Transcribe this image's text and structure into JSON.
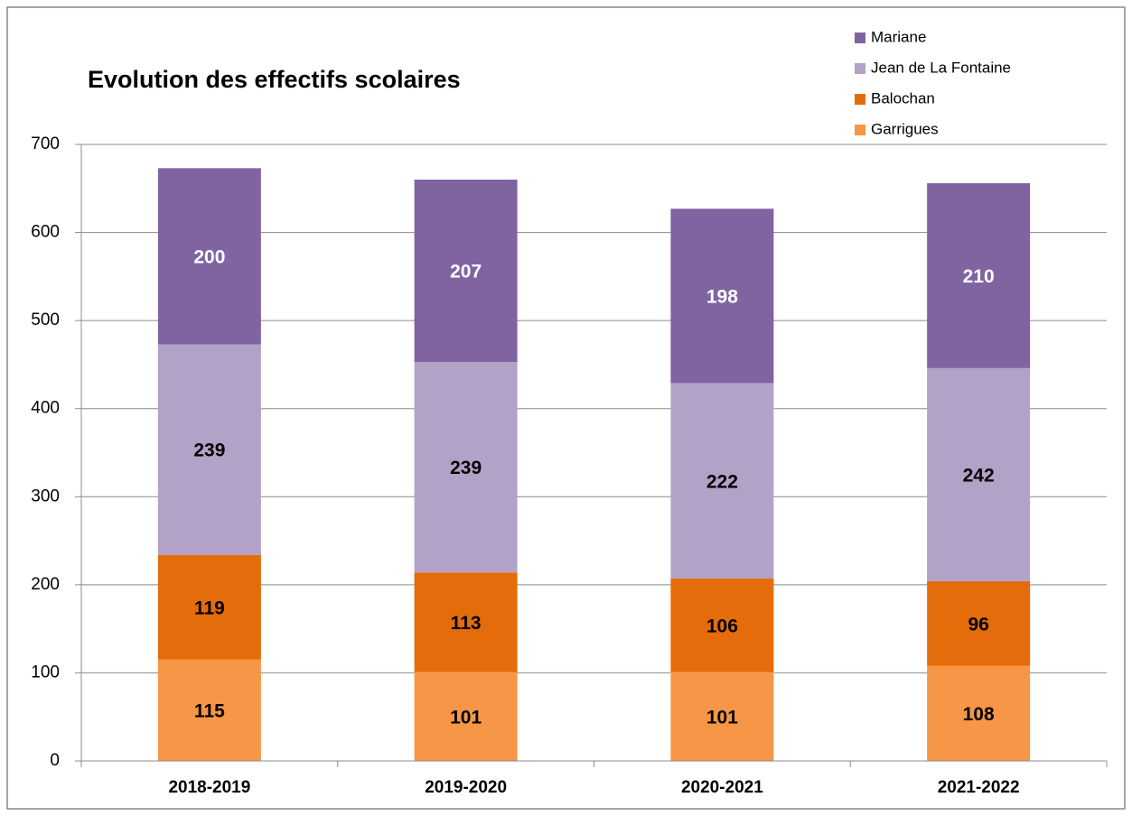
{
  "chart_data": {
    "type": "stacked_bar",
    "title": "Evolution des effectifs scolaires",
    "categories": [
      "2018-2019",
      "2019-2020",
      "2020-2021",
      "2021-2022"
    ],
    "series": [
      {
        "name": "Garrigues",
        "color": "#f79646",
        "label_color": "#000000",
        "values": [
          115,
          101,
          101,
          108
        ]
      },
      {
        "name": "Balochan",
        "color": "#e46c0a",
        "label_color": "#000000",
        "values": [
          119,
          113,
          106,
          96
        ]
      },
      {
        "name": "Jean de La Fontaine",
        "color": "#b3a2c7",
        "label_color": "#000000",
        "values": [
          239,
          239,
          222,
          242
        ]
      },
      {
        "name": "Mariane",
        "color": "#8064a2",
        "label_color": "#ffffff",
        "values": [
          200,
          207,
          198,
          210
        ]
      }
    ],
    "ylim": [
      0,
      700
    ],
    "yticks": [
      0,
      100,
      200,
      300,
      400,
      500,
      600,
      700
    ],
    "grid": true,
    "legend": "top-right"
  }
}
